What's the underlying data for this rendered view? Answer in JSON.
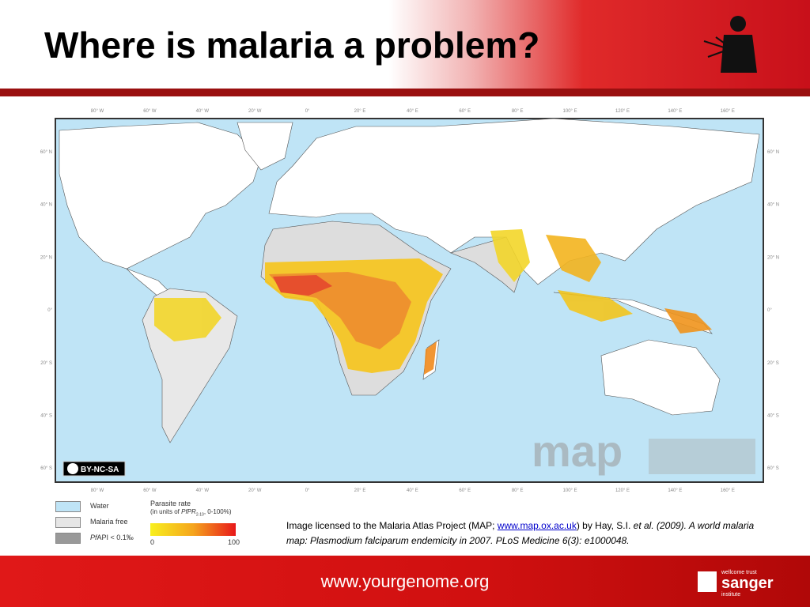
{
  "header": {
    "title": "Where is malaria a problem?"
  },
  "map": {
    "longitude_labels": [
      "80° W",
      "60° W",
      "40° W",
      "20° W",
      "0°",
      "20° E",
      "40° E",
      "60° E",
      "80° E",
      "100° E",
      "120° E",
      "140° E",
      "160° E"
    ],
    "latitude_labels": [
      "60° N",
      "40° N",
      "20° N",
      "0°",
      "20° S",
      "40° S",
      "60° S"
    ],
    "license_badge": "BY-NC-SA",
    "watermark": "map"
  },
  "legend": {
    "water": "Water",
    "malaria_free": "Malaria free",
    "pfapi_prefix": "Pf",
    "pfapi_text": "API < 0.1‰",
    "parasite_rate": "Parasite rate",
    "units_prefix": "(in units of ",
    "units_pf": "PfPR",
    "units_sub": "2-10",
    "units_suffix": ", 0-100%)",
    "scale_min": 0,
    "scale_max": 100
  },
  "citation": {
    "text1": "Image licensed to the Malaria Atlas Project (MAP; ",
    "link": "www.map.ox.ac.uk",
    "text2": ") by Hay, S.I. ",
    "italic": "et al. (2009). A world malaria map: Plasmodium falciparum endemicity in 2007. PLoS Medicine 6(3): e1000048."
  },
  "footer": {
    "url": "www.yourgenome.org",
    "logo_top": "wellcome trust",
    "logo_name": "sanger",
    "logo_bottom": "institute"
  }
}
